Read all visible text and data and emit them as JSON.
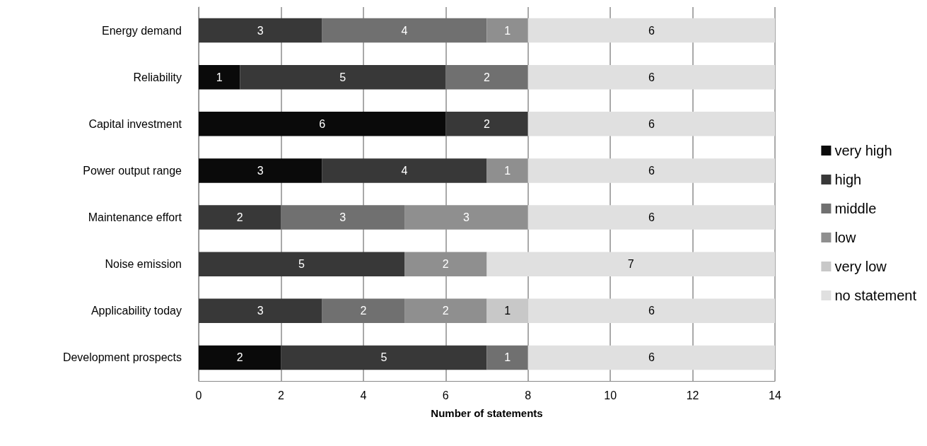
{
  "chart_data": {
    "type": "bar",
    "orientation": "horizontal",
    "stacked": true,
    "xlabel": "Number of statements",
    "categories": [
      "Energy demand",
      "Reliability",
      "Capital investment",
      "Power output range",
      "Maintenance effort",
      "Noise emission",
      "Applicability today",
      "Development prospects"
    ],
    "series": [
      {
        "name": "very high",
        "color": "#0a0a0a",
        "values": [
          null,
          1,
          6,
          3,
          null,
          null,
          null,
          2
        ]
      },
      {
        "name": "high",
        "color": "#383838",
        "values": [
          3,
          5,
          2,
          4,
          2,
          5,
          3,
          5
        ]
      },
      {
        "name": "middle",
        "color": "#707070",
        "values": [
          4,
          2,
          null,
          null,
          3,
          null,
          2,
          1
        ]
      },
      {
        "name": "low",
        "color": "#8f8f8f",
        "values": [
          1,
          null,
          null,
          1,
          3,
          2,
          2,
          null
        ]
      },
      {
        "name": "very low",
        "color": "#c8c8c8",
        "values": [
          null,
          null,
          null,
          null,
          null,
          null,
          1,
          null
        ]
      },
      {
        "name": "no statement",
        "color": "#e0e0e0",
        "values": [
          6,
          6,
          6,
          6,
          6,
          7,
          6,
          6
        ]
      }
    ],
    "xlim": [
      0,
      14
    ],
    "xticks": [
      0,
      2,
      4,
      6,
      8,
      10,
      12,
      14
    ],
    "grid": "x",
    "legend": "right",
    "data_labels": true
  }
}
